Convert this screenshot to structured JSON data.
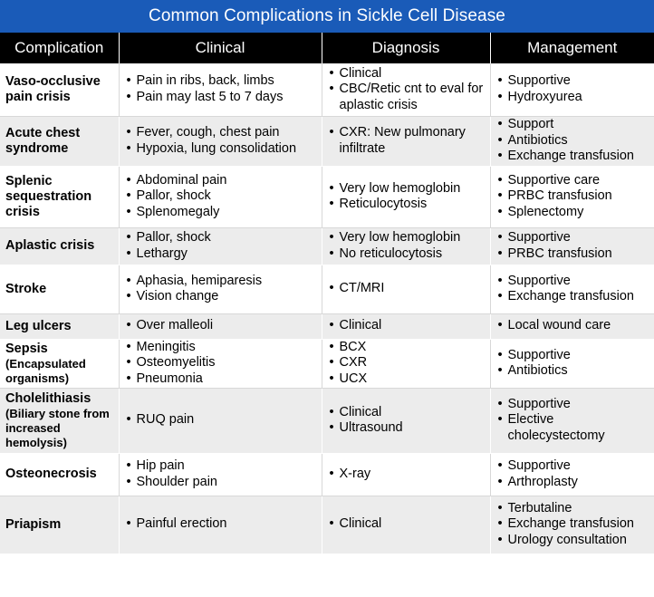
{
  "title": "Common Complications in Sickle Cell Disease",
  "headers": [
    "Complication",
    "Clinical",
    "Diagnosis",
    "Management"
  ],
  "rows": [
    {
      "complication": "Vaso-occlusive pain crisis",
      "sub": "",
      "clinical": [
        "Pain in ribs, back, limbs",
        "Pain may last 5 to 7 days"
      ],
      "diagnosis": [
        "Clinical",
        "CBC/Retic cnt to eval for aplastic crisis"
      ],
      "management": [
        "Supportive",
        "Hydroxyurea"
      ]
    },
    {
      "complication": "Acute chest syndrome",
      "sub": "",
      "clinical": [
        "Fever, cough, chest pain",
        "Hypoxia, lung consolidation"
      ],
      "diagnosis": [
        "CXR: New pulmonary infiltrate"
      ],
      "management": [
        "Support",
        "Antibiotics",
        "Exchange transfusion"
      ]
    },
    {
      "complication": "Splenic sequestration crisis",
      "sub": "",
      "clinical": [
        "Abdominal pain",
        "Pallor, shock",
        "Splenomegaly"
      ],
      "diagnosis": [
        "Very low hemoglobin",
        "Reticulocytosis"
      ],
      "management": [
        "Supportive care",
        "PRBC transfusion",
        "Splenectomy"
      ]
    },
    {
      "complication": "Aplastic crisis",
      "sub": "",
      "clinical": [
        "Pallor, shock",
        "Lethargy"
      ],
      "diagnosis": [
        "Very low hemoglobin",
        "No reticulocytosis"
      ],
      "management": [
        "Supportive",
        "PRBC transfusion"
      ]
    },
    {
      "complication": "Stroke",
      "sub": "",
      "clinical": [
        "Aphasia, hemiparesis",
        "Vision change"
      ],
      "diagnosis": [
        "CT/MRI"
      ],
      "management": [
        "Supportive",
        "Exchange transfusion"
      ]
    },
    {
      "complication": "Leg ulcers",
      "sub": "",
      "clinical": [
        "Over malleoli"
      ],
      "diagnosis": [
        "Clinical"
      ],
      "management": [
        "Local wound care"
      ]
    },
    {
      "complication": "Sepsis",
      "sub": "(Encapsulated organisms)",
      "clinical": [
        "Meningitis",
        "Osteomyelitis",
        "Pneumonia"
      ],
      "diagnosis": [
        "BCX",
        "CXR",
        "UCX"
      ],
      "management": [
        "Supportive",
        "Antibiotics"
      ]
    },
    {
      "complication": "Cholelithiasis",
      "sub": "(Biliary stone from increased hemolysis)",
      "clinical": [
        "RUQ pain"
      ],
      "diagnosis": [
        "Clinical",
        "Ultrasound"
      ],
      "management": [
        "Supportive",
        "Elective cholecystectomy"
      ]
    },
    {
      "complication": "Osteonecrosis",
      "sub": "",
      "clinical": [
        "Hip pain",
        "Shoulder pain"
      ],
      "diagnosis": [
        "X-ray"
      ],
      "management": [
        "Supportive",
        "Arthroplasty"
      ]
    },
    {
      "complication": "Priapism",
      "sub": "",
      "clinical": [
        "Painful erection"
      ],
      "diagnosis": [
        "Clinical"
      ],
      "management": [
        "Terbutaline",
        "Exchange transfusion",
        "Urology consultation"
      ]
    }
  ]
}
